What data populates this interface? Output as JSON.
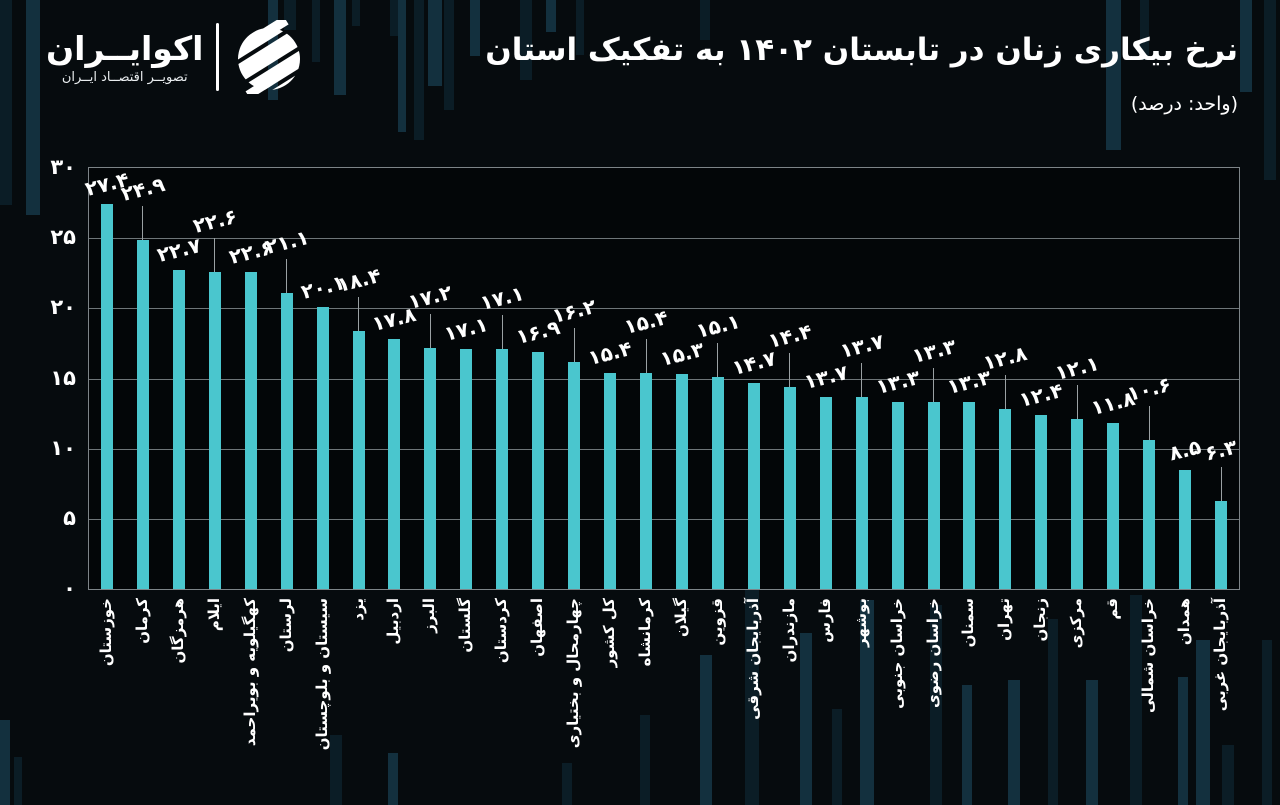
{
  "header": {
    "title": "نرخ بیکاری زنان در تابستان ۱۴۰۲ به تفکیک استان",
    "subtitle": "(واحد: درصد)",
    "logo": {
      "brand": "اکوایــران",
      "tagline": "تصویــر اقتصــاد ایــران"
    }
  },
  "chart_data": {
    "type": "bar",
    "title": "نرخ بیکاری زنان در تابستان ۱۴۰۲ به تفکیک استان",
    "unit_label": "(واحد: درصد)",
    "bar_color": "#4AC6CE",
    "background_color": "#060B0E",
    "text_color": "#FFFFFF",
    "grid": true,
    "legend": "none",
    "ylim": [
      0,
      30
    ],
    "xlabel": "",
    "ylabel": "",
    "x_tick_rotation": 90,
    "value_label_placement": "alternating; every second bar raised with a leader line",
    "y_ticks": [
      {
        "value": 0,
        "label": "۰"
      },
      {
        "value": 5,
        "label": "۵"
      },
      {
        "value": 10,
        "label": "۱۰"
      },
      {
        "value": 15,
        "label": "۱۵"
      },
      {
        "value": 20,
        "label": "۲۰"
      },
      {
        "value": 25,
        "label": "۲۵"
      },
      {
        "value": 30,
        "label": "۳۰"
      }
    ],
    "bars": [
      {
        "category": "خوزستان",
        "value": 27.4,
        "label": "۲۷.۴"
      },
      {
        "category": "کرمان",
        "value": 24.9,
        "label": "۲۴.۹"
      },
      {
        "category": "هرمزگان",
        "value": 22.7,
        "label": "۲۲.۷"
      },
      {
        "category": "ایلام",
        "value": 22.6,
        "label": "۲۲.۶"
      },
      {
        "category": "کهگیلویه و بویراحمد",
        "value": 22.6,
        "label": "۲۲.۶"
      },
      {
        "category": "لرستان",
        "value": 21.1,
        "label": "۲۱.۱"
      },
      {
        "category": "سیستان و بلوچستان",
        "value": 20.1,
        "label": "۲۰.۱"
      },
      {
        "category": "یزد",
        "value": 18.4,
        "label": "۱۸.۴"
      },
      {
        "category": "اردبیل",
        "value": 17.8,
        "label": "۱۷.۸"
      },
      {
        "category": "البرز",
        "value": 17.2,
        "label": "۱۷.۲"
      },
      {
        "category": "گلستان",
        "value": 17.1,
        "label": "۱۷.۱"
      },
      {
        "category": "کردستان",
        "value": 17.1,
        "label": "۱۷.۱"
      },
      {
        "category": "اصفهان",
        "value": 16.9,
        "label": "۱۶.۹"
      },
      {
        "category": "چهارمحال و بختیاری",
        "value": 16.2,
        "label": "۱۶.۲"
      },
      {
        "category": "کل کشور",
        "value": 15.4,
        "label": "۱۵.۴"
      },
      {
        "category": "کرمانشاه",
        "value": 15.4,
        "label": "۱۵.۴"
      },
      {
        "category": "گیلان",
        "value": 15.3,
        "label": "۱۵.۳"
      },
      {
        "category": "قزوین",
        "value": 15.1,
        "label": "۱۵.۱"
      },
      {
        "category": "آذربایجان شرقی",
        "value": 14.7,
        "label": "۱۴.۷"
      },
      {
        "category": "مازندران",
        "value": 14.4,
        "label": "۱۴.۴"
      },
      {
        "category": "فارس",
        "value": 13.7,
        "label": "۱۳.۷"
      },
      {
        "category": "بوشهر",
        "value": 13.7,
        "label": "۱۳.۷"
      },
      {
        "category": "خراسان جنوبی",
        "value": 13.3,
        "label": "۱۳.۳"
      },
      {
        "category": "خراسان رضوی",
        "value": 13.3,
        "label": "۱۳.۳"
      },
      {
        "category": "سمنان",
        "value": 13.3,
        "label": "۱۳.۳"
      },
      {
        "category": "تهران",
        "value": 12.8,
        "label": "۱۲.۸"
      },
      {
        "category": "زنجان",
        "value": 12.4,
        "label": "۱۲.۴"
      },
      {
        "category": "مرکزی",
        "value": 12.1,
        "label": "۱۲.۱"
      },
      {
        "category": "قم",
        "value": 11.8,
        "label": "۱۱.۸"
      },
      {
        "category": "خراسان شمالی",
        "value": 10.6,
        "label": "۱۰.۶"
      },
      {
        "category": "همدان",
        "value": 8.5,
        "label": "۸.۵"
      },
      {
        "category": "آذربایجان غربی",
        "value": 6.3,
        "label": "۶.۳"
      }
    ]
  }
}
